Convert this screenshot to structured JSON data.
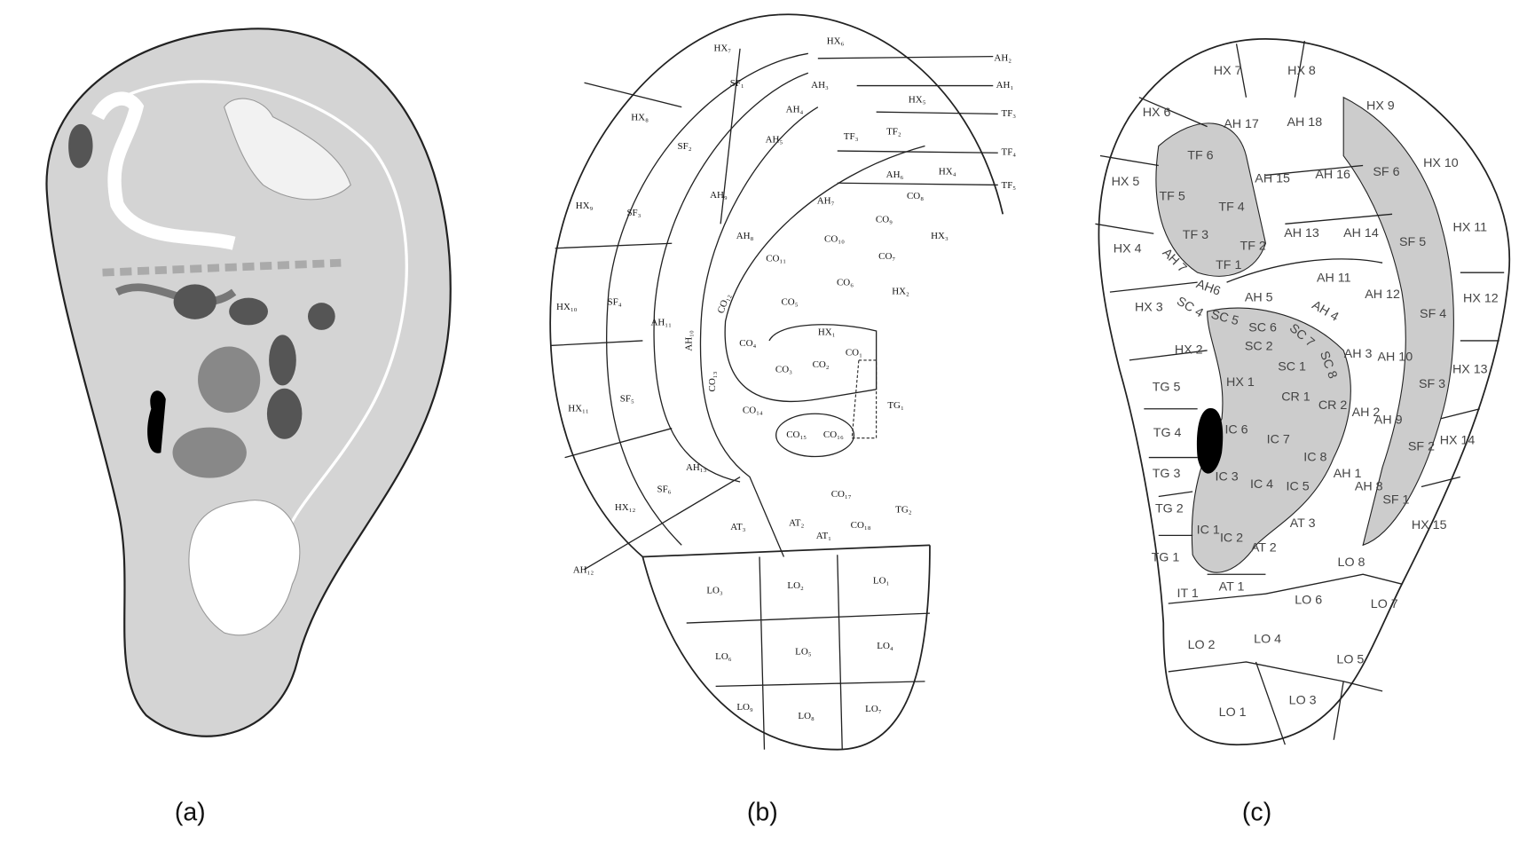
{
  "captions": [
    "(a)",
    "(b)",
    "(c)"
  ],
  "panel_b": {
    "labels": [
      "HX₇",
      "HX₆",
      "AH₂",
      "AH₁",
      "AH₃",
      "SF₁",
      "HX₅",
      "TF₃",
      "AH₄",
      "HX₈",
      "AH₅",
      "TF₃",
      "TF₂",
      "TF₄",
      "SF₂",
      "AH₆",
      "HX₄",
      "TF₅",
      "CO₈",
      "AH₉",
      "HX₉",
      "SF₃",
      "AH₇",
      "CO₉",
      "AH₈",
      "CO₁₀",
      "HX₃",
      "CO₁₁",
      "CO₇",
      "CO₆",
      "HX₂",
      "SF₄",
      "HX₁₀",
      "CO₁₂",
      "CO₅",
      "AH₁₁",
      "AH₁₀",
      "HX₁",
      "CO₄",
      "CO₂",
      "CO₁",
      "CO₃",
      "CO₁₃",
      "TG₁",
      "SF₅",
      "HX₁₁",
      "CO₁₄",
      "CO₁₅",
      "CO₁₆",
      "AH₁₃",
      "SF₆",
      "CO₁₇",
      "HX₁₂",
      "TG₂",
      "AT₂",
      "AT₃",
      "CO₁₈",
      "AT₁",
      "AH₁₂",
      "LO₃",
      "LO₂",
      "LO₁",
      "LO₆",
      "LO₅",
      "LO₄",
      "LO₉",
      "LO₈",
      "LO₇"
    ]
  },
  "panel_c": {
    "labels": [
      "HX 7",
      "HX 8",
      "HX 6",
      "AH 17",
      "AH 18",
      "HX 9",
      "TF 6",
      "SF 6",
      "HX 10",
      "HX 5",
      "AH 15",
      "AH 16",
      "TF 5",
      "TF 4",
      "HX 11",
      "AH 13",
      "AH 14",
      "SF 5",
      "TF 3",
      "TF 2",
      "HX 4",
      "TF 1",
      "AH 11",
      "AH 12",
      "AH 7",
      "AH6",
      "AH 5",
      "SF 4",
      "HX 12",
      "HX 3",
      "SC 4",
      "SC 5",
      "SC 6",
      "AH 4",
      "SC 2",
      "SC 7",
      "SC 1",
      "SC 8",
      "AH 3",
      "AH 10",
      "HX 2",
      "HX 13",
      "SF 3",
      "HX 1",
      "CR 1",
      "CR 2",
      "AH 2",
      "AH 9",
      "TG 5",
      "TG 4",
      "IC 6",
      "IC 7",
      "IC 8",
      "HX 14",
      "SF 2",
      "TG 3",
      "IC 3",
      "IC 4",
      "IC 5",
      "AH 1",
      "AH 8",
      "SF 1",
      "TG 2",
      "HX 15",
      "AT 3",
      "IC 1",
      "IC 2",
      "AT 2",
      "TG 1",
      "LO 8",
      "AT 1",
      "IT 1",
      "LO 6",
      "LO 7",
      "LO 4",
      "LO 2",
      "LO 5",
      "LO 1",
      "LO 3"
    ]
  }
}
